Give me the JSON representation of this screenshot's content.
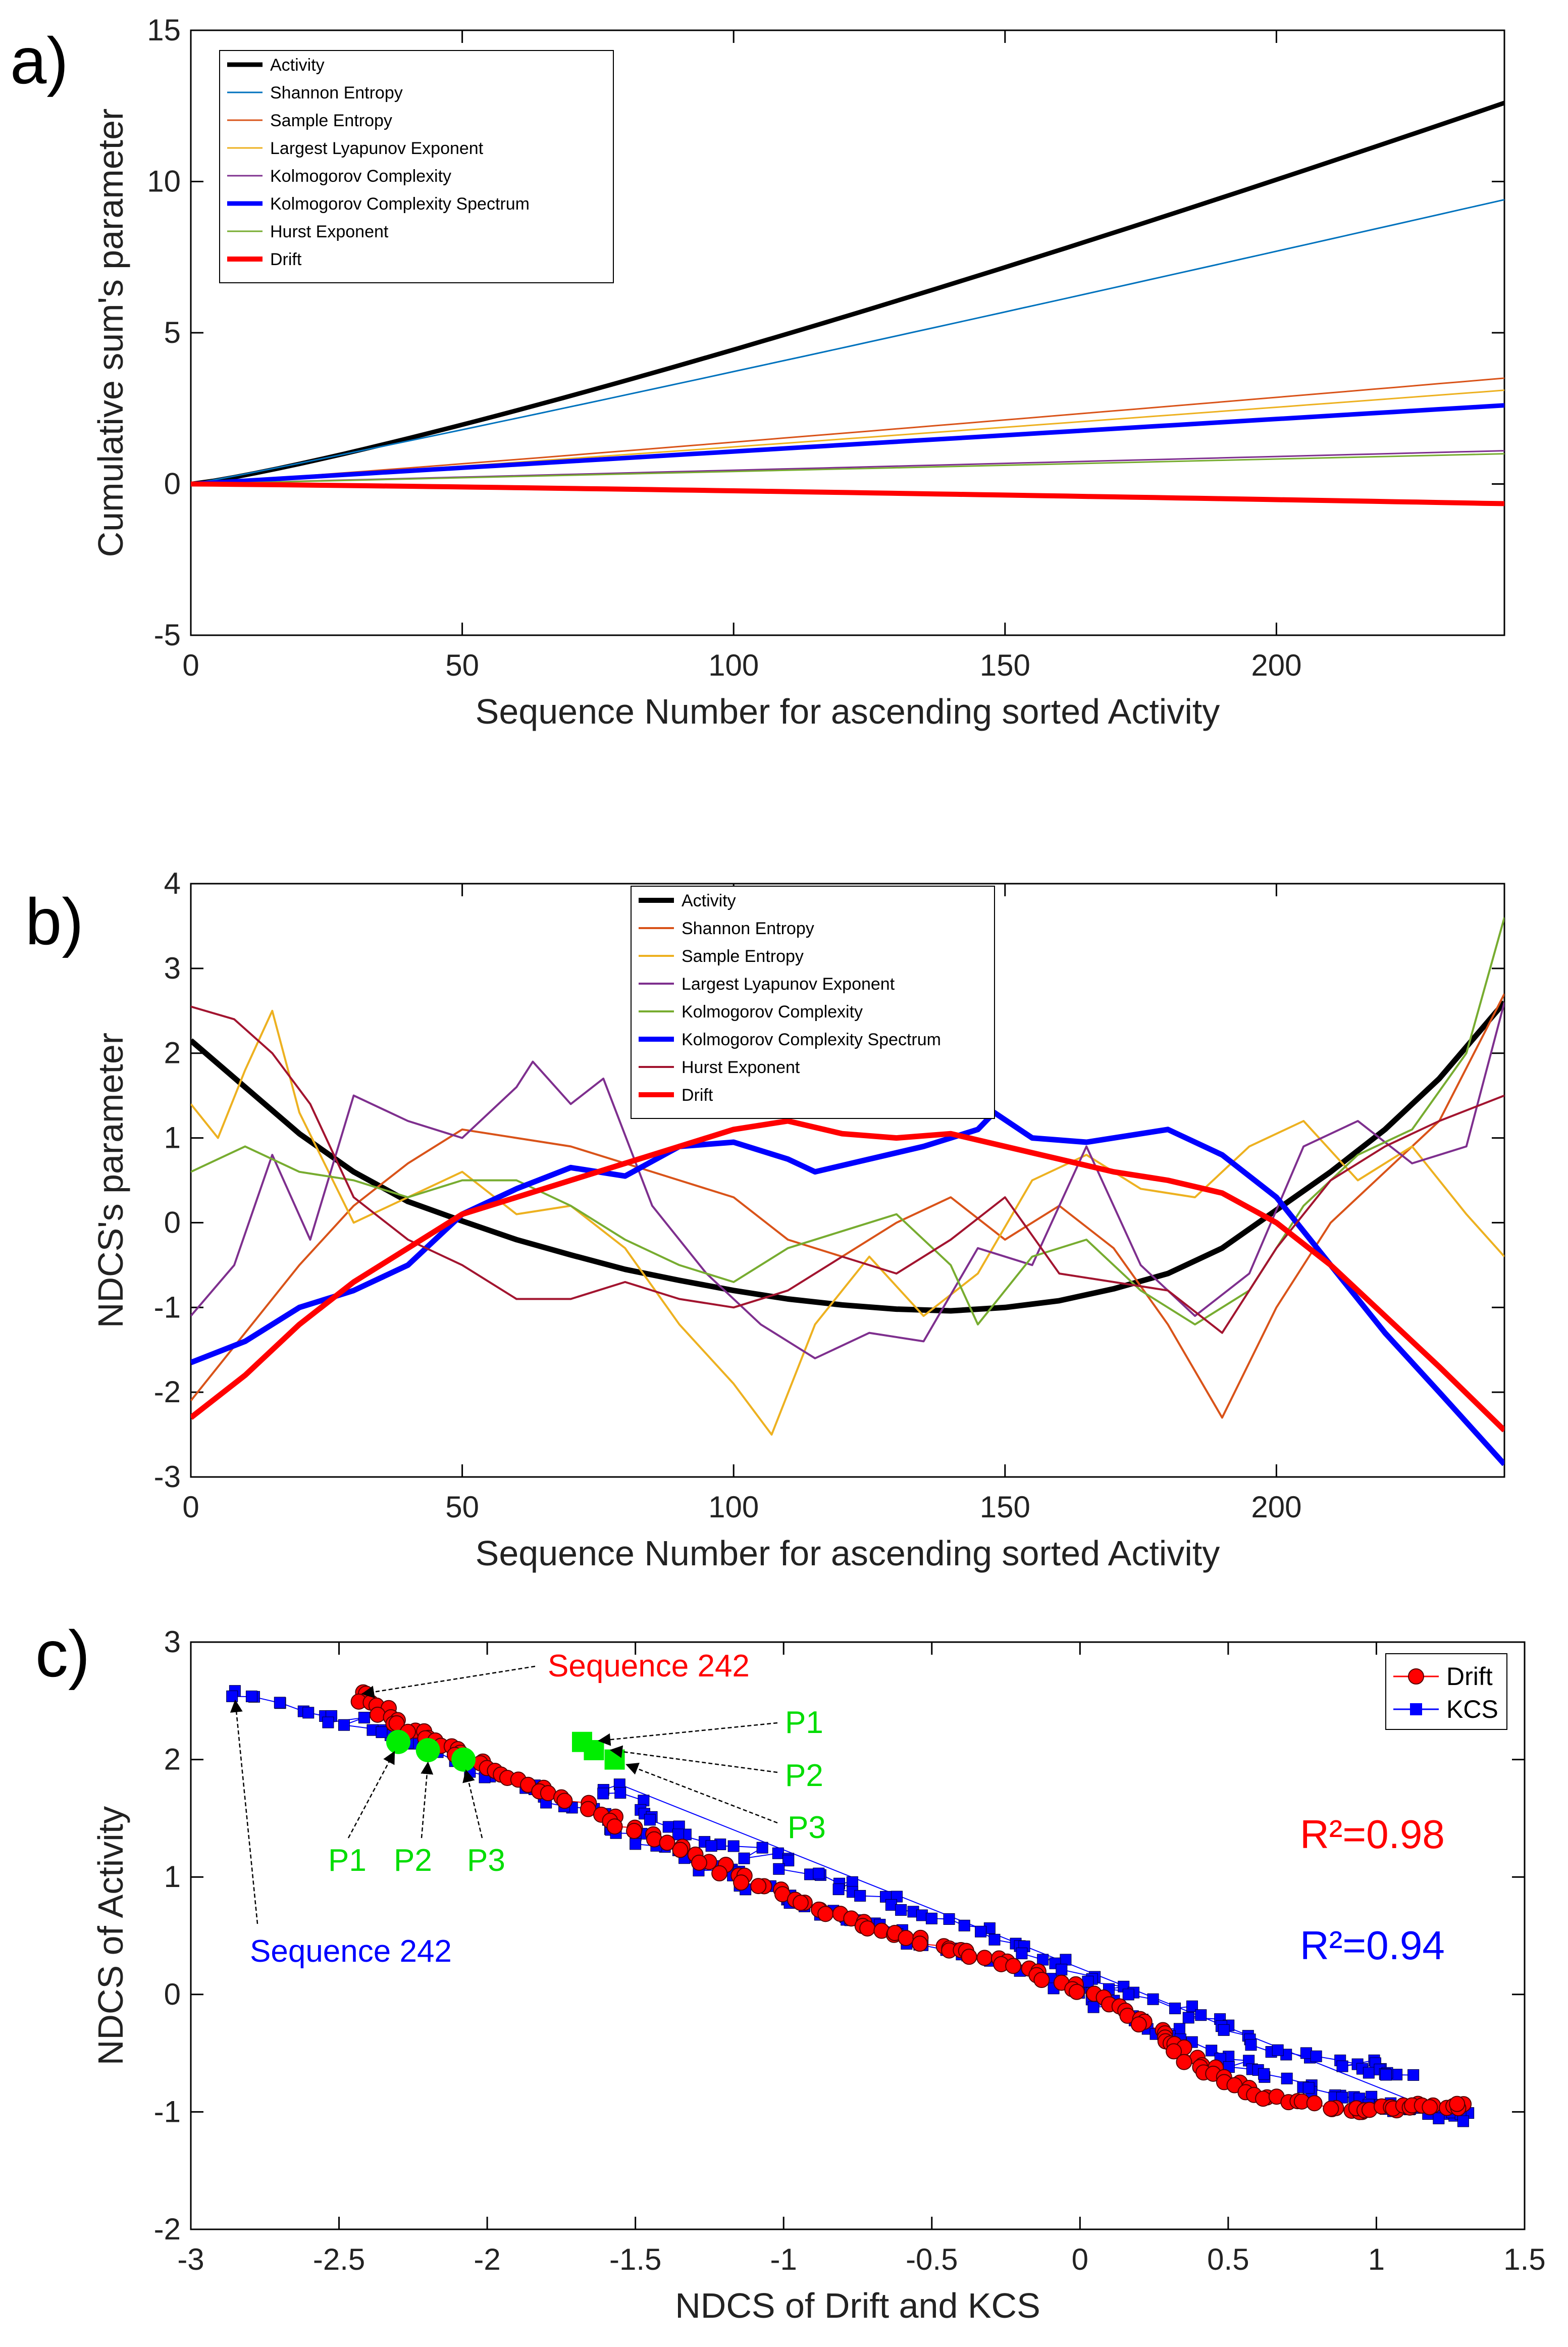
{
  "chart_data": [
    {
      "panel_label": "a)",
      "type": "line",
      "xlabel": "Sequence Number for ascending sorted Activity",
      "ylabel": "Cumulative sum's parameter",
      "xlim": [
        0,
        242
      ],
      "ylim": [
        -5,
        15
      ],
      "xticks": [
        0,
        50,
        100,
        150,
        200
      ],
      "yticks": [
        -5,
        0,
        5,
        10,
        15
      ],
      "legend_position": "top-left",
      "series": [
        {
          "name": "Activity",
          "color": "#000000",
          "width": 9,
          "x": [
            0,
            242
          ],
          "y": [
            0,
            12.6
          ],
          "curve": 1.18
        },
        {
          "name": "Shannon Entropy",
          "color": "#0072BD",
          "width": 3,
          "x": [
            0,
            242
          ],
          "y": [
            0,
            9.4
          ],
          "curve": 1.05
        },
        {
          "name": "Sample Entropy",
          "color": "#D95319",
          "width": 3,
          "x": [
            0,
            242
          ],
          "y": [
            0,
            3.5
          ],
          "curve": 1.05
        },
        {
          "name": "Largest Lyapunov Exponent",
          "color": "#EDB120",
          "width": 3,
          "x": [
            0,
            242
          ],
          "y": [
            0,
            3.1
          ],
          "curve": 1.05
        },
        {
          "name": "Kolmogorov Complexity",
          "color": "#7E2F8E",
          "width": 3,
          "x": [
            0,
            242
          ],
          "y": [
            0,
            1.1
          ],
          "curve": 1.0
        },
        {
          "name": "Kolmogorov Complexity Spectrum",
          "color": "#0000FF",
          "width": 9,
          "x": [
            0,
            242
          ],
          "y": [
            0,
            2.6
          ],
          "curve": 1.0
        },
        {
          "name": "Hurst Exponent",
          "color": "#77AC30",
          "width": 3,
          "x": [
            0,
            242
          ],
          "y": [
            0,
            1.0
          ],
          "curve": 1.0
        },
        {
          "name": "Drift",
          "color": "#FF0000",
          "width": 10,
          "x": [
            0,
            242
          ],
          "y": [
            0,
            -0.65
          ],
          "curve": 1.2
        }
      ]
    },
    {
      "panel_label": "b)",
      "type": "line",
      "xlabel": "Sequence Number for ascending sorted Activity",
      "ylabel": "NDCS's parameter",
      "xlim": [
        0,
        242
      ],
      "ylim": [
        -3,
        4
      ],
      "xticks": [
        0,
        50,
        100,
        150,
        200
      ],
      "yticks": [
        -3,
        -2,
        -1,
        0,
        1,
        2,
        3,
        4
      ],
      "legend_position": "top-center",
      "series": [
        {
          "name": "Activity",
          "color": "#000000",
          "width": 11,
          "x": [
            0,
            10,
            20,
            30,
            40,
            50,
            60,
            70,
            80,
            90,
            100,
            110,
            120,
            130,
            140,
            150,
            160,
            170,
            180,
            190,
            200,
            210,
            220,
            230,
            242
          ],
          "y": [
            2.15,
            1.6,
            1.05,
            0.6,
            0.25,
            0.02,
            -0.2,
            -0.38,
            -0.55,
            -0.68,
            -0.8,
            -0.9,
            -0.97,
            -1.02,
            -1.04,
            -1.0,
            -0.92,
            -0.78,
            -0.6,
            -0.3,
            0.15,
            0.6,
            1.1,
            1.7,
            2.6
          ]
        },
        {
          "name": "Shannon Entropy",
          "color": "#D95319",
          "width": 4,
          "x": [
            0,
            10,
            20,
            30,
            40,
            50,
            60,
            70,
            80,
            90,
            100,
            110,
            120,
            130,
            140,
            150,
            160,
            170,
            180,
            190,
            200,
            210,
            220,
            230,
            242
          ],
          "y": [
            -2.1,
            -1.3,
            -0.5,
            0.2,
            0.7,
            1.1,
            1.0,
            0.9,
            0.7,
            0.5,
            0.3,
            -0.2,
            -0.4,
            0.0,
            0.3,
            -0.2,
            0.2,
            -0.3,
            -1.2,
            -2.3,
            -1.0,
            0.0,
            0.6,
            1.2,
            2.7
          ]
        },
        {
          "name": "Sample Entropy",
          "color": "#EDB120",
          "width": 4,
          "x": [
            0,
            5,
            10,
            15,
            20,
            30,
            40,
            50,
            60,
            70,
            80,
            90,
            100,
            107,
            115,
            125,
            135,
            145,
            155,
            165,
            175,
            185,
            195,
            205,
            215,
            225,
            235,
            242
          ],
          "y": [
            1.4,
            1.0,
            1.8,
            2.5,
            1.3,
            0.0,
            0.3,
            0.6,
            0.1,
            0.2,
            -0.3,
            -1.2,
            -1.9,
            -2.5,
            -1.2,
            -0.4,
            -1.1,
            -0.6,
            0.5,
            0.8,
            0.4,
            0.3,
            0.9,
            1.2,
            0.5,
            0.9,
            0.1,
            -0.4
          ]
        },
        {
          "name": "Largest Lyapunov Exponent",
          "color": "#7E2F8E",
          "width": 4,
          "x": [
            0,
            8,
            15,
            22,
            30,
            40,
            50,
            60,
            63,
            70,
            76,
            85,
            95,
            105,
            115,
            125,
            135,
            145,
            155,
            165,
            175,
            185,
            195,
            205,
            215,
            225,
            235,
            242
          ],
          "y": [
            -1.1,
            -0.5,
            0.8,
            -0.2,
            1.5,
            1.2,
            1.0,
            1.6,
            1.9,
            1.4,
            1.7,
            0.2,
            -0.6,
            -1.2,
            -1.6,
            -1.3,
            -1.4,
            -0.3,
            -0.5,
            0.9,
            -0.5,
            -1.1,
            -0.6,
            0.9,
            1.2,
            0.7,
            0.9,
            2.6
          ]
        },
        {
          "name": "Kolmogorov Complexity",
          "color": "#77AC30",
          "width": 4,
          "x": [
            0,
            10,
            20,
            30,
            40,
            50,
            60,
            70,
            80,
            90,
            100,
            110,
            120,
            130,
            140,
            145,
            155,
            165,
            175,
            185,
            195,
            205,
            215,
            225,
            235,
            242
          ],
          "y": [
            0.6,
            0.9,
            0.6,
            0.5,
            0.3,
            0.5,
            0.5,
            0.2,
            -0.2,
            -0.5,
            -0.7,
            -0.3,
            -0.1,
            0.1,
            -0.5,
            -1.2,
            -0.4,
            -0.2,
            -0.8,
            -1.2,
            -0.8,
            0.2,
            0.8,
            1.1,
            2.0,
            3.6
          ]
        },
        {
          "name": "Kolmogorov Complexity Spectrum",
          "color": "#0000FF",
          "width": 11,
          "x": [
            0,
            10,
            20,
            30,
            40,
            50,
            60,
            70,
            80,
            90,
            100,
            110,
            115,
            125,
            135,
            145,
            148,
            155,
            165,
            175,
            180,
            190,
            200,
            210,
            220,
            230,
            242
          ],
          "y": [
            -1.65,
            -1.4,
            -1.0,
            -0.8,
            -0.5,
            0.1,
            0.4,
            0.65,
            0.55,
            0.9,
            0.95,
            0.75,
            0.6,
            0.75,
            0.9,
            1.1,
            1.3,
            1.0,
            0.95,
            1.05,
            1.1,
            0.8,
            0.3,
            -0.5,
            -1.3,
            -2.0,
            -2.85
          ]
        },
        {
          "name": "Hurst Exponent",
          "color": "#A2142F",
          "width": 4,
          "x": [
            0,
            8,
            15,
            22,
            30,
            40,
            50,
            60,
            70,
            80,
            90,
            100,
            110,
            120,
            130,
            140,
            150,
            160,
            170,
            180,
            190,
            200,
            210,
            220,
            230,
            242
          ],
          "y": [
            2.55,
            2.4,
            2.0,
            1.4,
            0.3,
            -0.2,
            -0.5,
            -0.9,
            -0.9,
            -0.7,
            -0.9,
            -1.0,
            -0.8,
            -0.4,
            -0.6,
            -0.2,
            0.3,
            -0.6,
            -0.7,
            -0.8,
            -1.3,
            -0.3,
            0.5,
            0.9,
            1.2,
            1.5
          ]
        },
        {
          "name": "Drift",
          "color": "#FF0000",
          "width": 11,
          "x": [
            0,
            10,
            20,
            30,
            40,
            50,
            60,
            70,
            80,
            90,
            100,
            110,
            120,
            130,
            140,
            150,
            160,
            170,
            180,
            190,
            200,
            210,
            220,
            230,
            242
          ],
          "y": [
            -2.3,
            -1.8,
            -1.2,
            -0.7,
            -0.3,
            0.1,
            0.3,
            0.5,
            0.7,
            0.9,
            1.1,
            1.2,
            1.05,
            1.0,
            1.05,
            0.9,
            0.75,
            0.6,
            0.5,
            0.35,
            0.0,
            -0.5,
            -1.1,
            -1.7,
            -2.45
          ]
        }
      ]
    },
    {
      "panel_label": "c)",
      "type": "scatter",
      "xlabel": "NDCS of Drift and KCS",
      "ylabel": "NDCS of Activity",
      "xlim": [
        -3,
        1.5
      ],
      "ylim": [
        -2,
        3
      ],
      "xticks": [
        -3,
        -2.5,
        -2,
        -1.5,
        -1,
        -0.5,
        0,
        0.5,
        1,
        1.5
      ],
      "yticks": [
        -2,
        -1,
        0,
        1,
        2,
        3
      ],
      "legend_position": "top-right",
      "series": [
        {
          "name": "Drift",
          "color": "#FF0000",
          "marker": "circle",
          "path_x": [
            -2.45,
            -2.3,
            -2.1,
            -1.8,
            -1.5,
            -1.2,
            -0.9,
            -0.6,
            -0.3,
            0.0,
            0.25,
            0.4,
            0.6,
            0.9,
            1.1,
            1.3
          ],
          "path_y": [
            2.58,
            2.3,
            2.05,
            1.75,
            1.4,
            1.05,
            0.75,
            0.5,
            0.3,
            0.05,
            -0.3,
            -0.6,
            -0.85,
            -1.0,
            -0.95,
            -0.95
          ]
        },
        {
          "name": "KCS",
          "color": "#0000FF",
          "marker": "square",
          "path_x": [
            -2.85,
            -2.5,
            -2.2,
            -1.9,
            -1.6,
            -1.3,
            -1.0,
            -0.7,
            -0.4,
            -0.1,
            0.2,
            0.5,
            0.8,
            1.0,
            1.2,
            1.3
          ],
          "path_y": [
            2.58,
            2.35,
            2.1,
            1.8,
            1.45,
            1.15,
            0.85,
            0.6,
            0.35,
            0.1,
            -0.2,
            -0.55,
            -0.8,
            -0.95,
            -1.0,
            -1.05
          ],
          "path_x2": [
            -1.6,
            -1.4,
            -1.1,
            -0.8,
            -0.5,
            -0.2,
            0.1,
            0.4,
            0.7,
            1.0,
            1.1
          ],
          "path_y2": [
            1.8,
            1.45,
            1.2,
            0.95,
            0.7,
            0.4,
            0.1,
            -0.2,
            -0.5,
            -0.6,
            -0.7
          ]
        }
      ],
      "highlight_points": [
        {
          "label": "P1",
          "x": -2.3,
          "y": 2.15,
          "marker": "circle"
        },
        {
          "label": "P2",
          "x": -2.2,
          "y": 2.08,
          "marker": "circle"
        },
        {
          "label": "P3",
          "x": -2.08,
          "y": 2.0,
          "marker": "circle"
        },
        {
          "label": "P1",
          "x": -1.68,
          "y": 2.15,
          "marker": "square"
        },
        {
          "label": "P2",
          "x": -1.64,
          "y": 2.08,
          "marker": "square"
        },
        {
          "label": "P3",
          "x": -1.57,
          "y": 2.0,
          "marker": "square"
        }
      ],
      "annotations": {
        "drift_sequence": "Sequence 242",
        "kcs_sequence": "Sequence 242",
        "r2_drift": "R²=0.98",
        "r2_kcs": "R²=0.94",
        "p1": "P1",
        "p2": "P2",
        "p3": "P3"
      }
    }
  ]
}
